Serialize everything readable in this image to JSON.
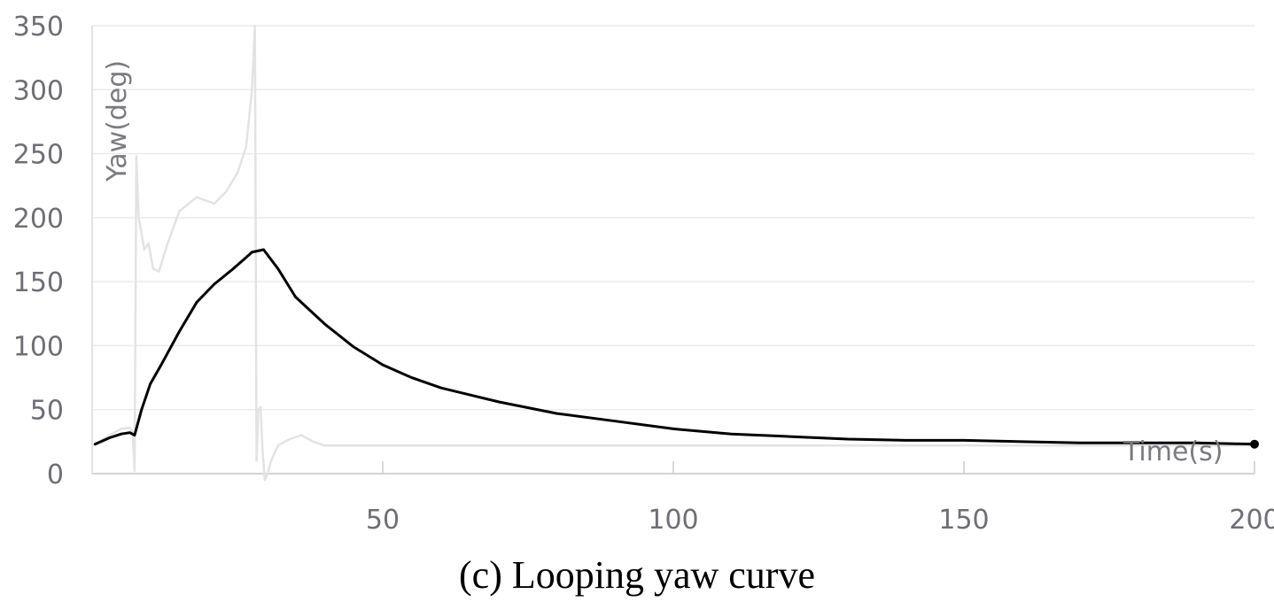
{
  "chart_data": {
    "type": "line",
    "xlabel": "Time(s)",
    "ylabel": "Yaw(deg)",
    "xlim": [
      0,
      200
    ],
    "ylim": [
      0,
      350
    ],
    "x_ticks": [
      "50",
      "100",
      "150",
      "200"
    ],
    "y_ticks": [
      "0",
      "50",
      "100",
      "150",
      "200",
      "250",
      "300",
      "350"
    ],
    "grid": true,
    "series": [
      {
        "color": "#000000",
        "x": [
          0.5,
          3,
          5,
          6.5,
          7.3,
          8.5,
          10,
          12,
          15,
          18,
          21,
          24,
          26,
          27.5,
          29.5,
          32,
          35,
          40,
          45,
          50,
          55,
          60,
          70,
          80,
          90,
          100,
          110,
          120,
          130,
          140,
          150,
          160,
          170,
          180,
          190,
          200
        ],
        "values": [
          23,
          28,
          31,
          32,
          30,
          50,
          70,
          86,
          111,
          134,
          148,
          159,
          167,
          173,
          175,
          160,
          138,
          117,
          99,
          85,
          75,
          67,
          56,
          47,
          41,
          35,
          31,
          29,
          27,
          26,
          26,
          25,
          24,
          24,
          24,
          23
        ]
      },
      {
        "color": "#e3e3e3",
        "x": [
          0.5,
          3,
          5,
          6.5,
          7,
          7.3,
          7.6,
          8,
          9,
          9.7,
          10.5,
          11.5,
          13,
          15,
          18,
          21,
          23,
          25,
          26.5,
          27.5,
          28,
          28.3,
          28.6,
          29,
          29.3,
          29.7,
          30.2,
          30.8,
          32,
          34,
          36,
          38,
          40,
          42,
          50,
          70,
          100,
          130,
          150,
          170,
          200
        ],
        "values": [
          23,
          30,
          35,
          36,
          32,
          2,
          248,
          200,
          175,
          180,
          160,
          158,
          180,
          205,
          216,
          211,
          220,
          235,
          255,
          300,
          350,
          10,
          50,
          52,
          20,
          -5,
          0,
          10,
          22,
          27,
          30,
          25,
          22,
          22,
          22,
          22,
          22,
          22,
          22,
          22,
          22
        ]
      }
    ]
  },
  "caption": "(c) Looping yaw curve"
}
